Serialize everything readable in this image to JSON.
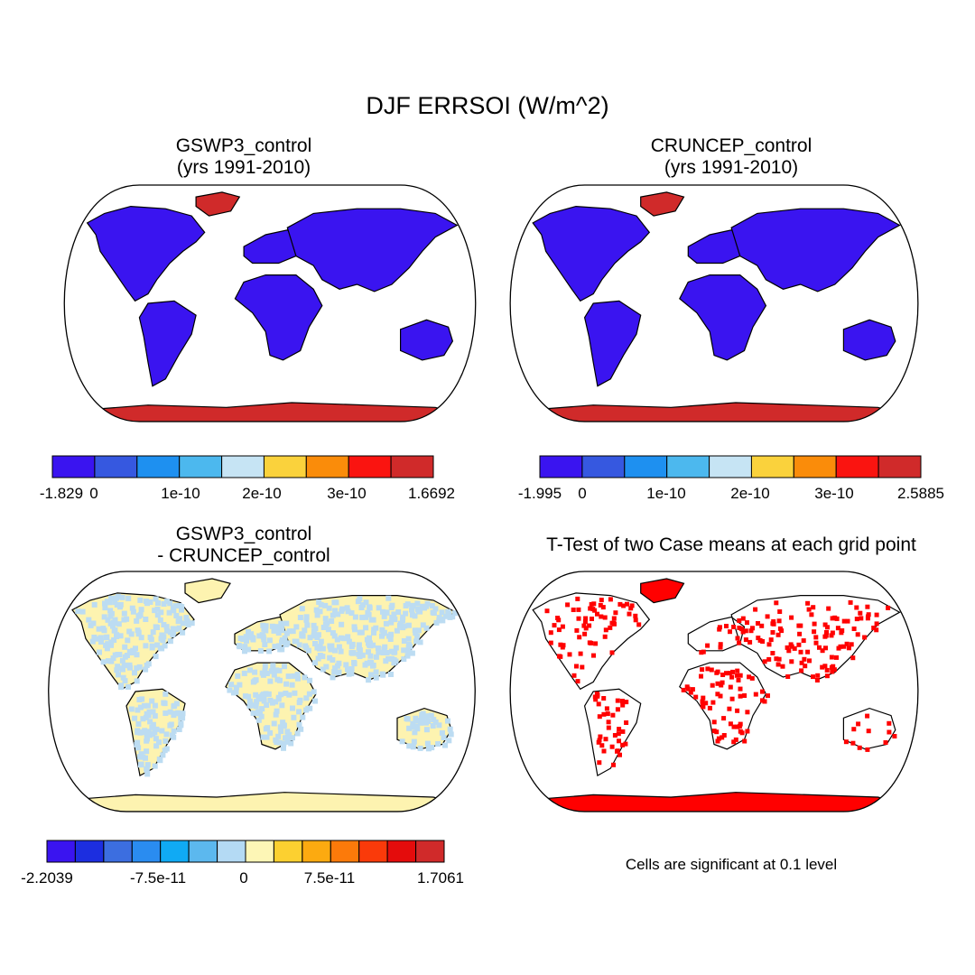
{
  "title": "DJF ERRSOI (W/m^2)",
  "panels": [
    {
      "id": "gswp3",
      "title_line1": "GSWP3_control",
      "title_line2": "(yrs 1991-2010)",
      "land_color": "#3a14f0",
      "ice_color": "#d02a2a",
      "colorbar": {
        "colors": [
          "#3a14f0",
          "#3658e0",
          "#1e90f0",
          "#4cb8ee",
          "#c6e4f4",
          "#fad23c",
          "#fa8c0a",
          "#fa1410",
          "#d02a2a"
        ],
        "labels": [
          "-1.829",
          "0",
          "1e-10",
          "2e-10",
          "3e-10",
          "1.6692"
        ]
      }
    },
    {
      "id": "cruncep",
      "title_line1": "CRUNCEP_control",
      "title_line2": "(yrs 1991-2010)",
      "land_color": "#3a14f0",
      "ice_color": "#d02a2a",
      "colorbar": {
        "colors": [
          "#3a14f0",
          "#3658e0",
          "#1e90f0",
          "#4cb8ee",
          "#c6e4f4",
          "#fad23c",
          "#fa8c0a",
          "#fa1410",
          "#d02a2a"
        ],
        "labels": [
          "-1.995",
          "0",
          "1e-10",
          "2e-10",
          "3e-10",
          "2.5885"
        ]
      }
    },
    {
      "id": "difference",
      "title_line1": "GSWP3_control",
      "title_line2": "- CRUNCEP_control",
      "land_color": "#fdf3b0",
      "speckle_color": "#bcdcf2",
      "ice_color": "#fdf3b0",
      "colorbar": {
        "colors": [
          "#3a14f0",
          "#1c2ee0",
          "#3c6ee0",
          "#2a8cf0",
          "#10aaf4",
          "#5cb8ee",
          "#b4daf4",
          "#fdf6b6",
          "#fcd030",
          "#fcaa10",
          "#fc7a0a",
          "#fa3a0a",
          "#e40c0c",
          "#d02a2a"
        ],
        "labels": [
          "-2.2039",
          "-7.5e-11",
          "0",
          "7.5e-11",
          "1.7061"
        ]
      }
    },
    {
      "id": "ttest",
      "title_line1": "T-Test of two Case means at each grid point",
      "significance_color": "#ff0000",
      "footnote": "Cells are significant at 0.1 level"
    }
  ],
  "colors": {
    "coastline": "#000000",
    "ocean": "#ffffff"
  }
}
